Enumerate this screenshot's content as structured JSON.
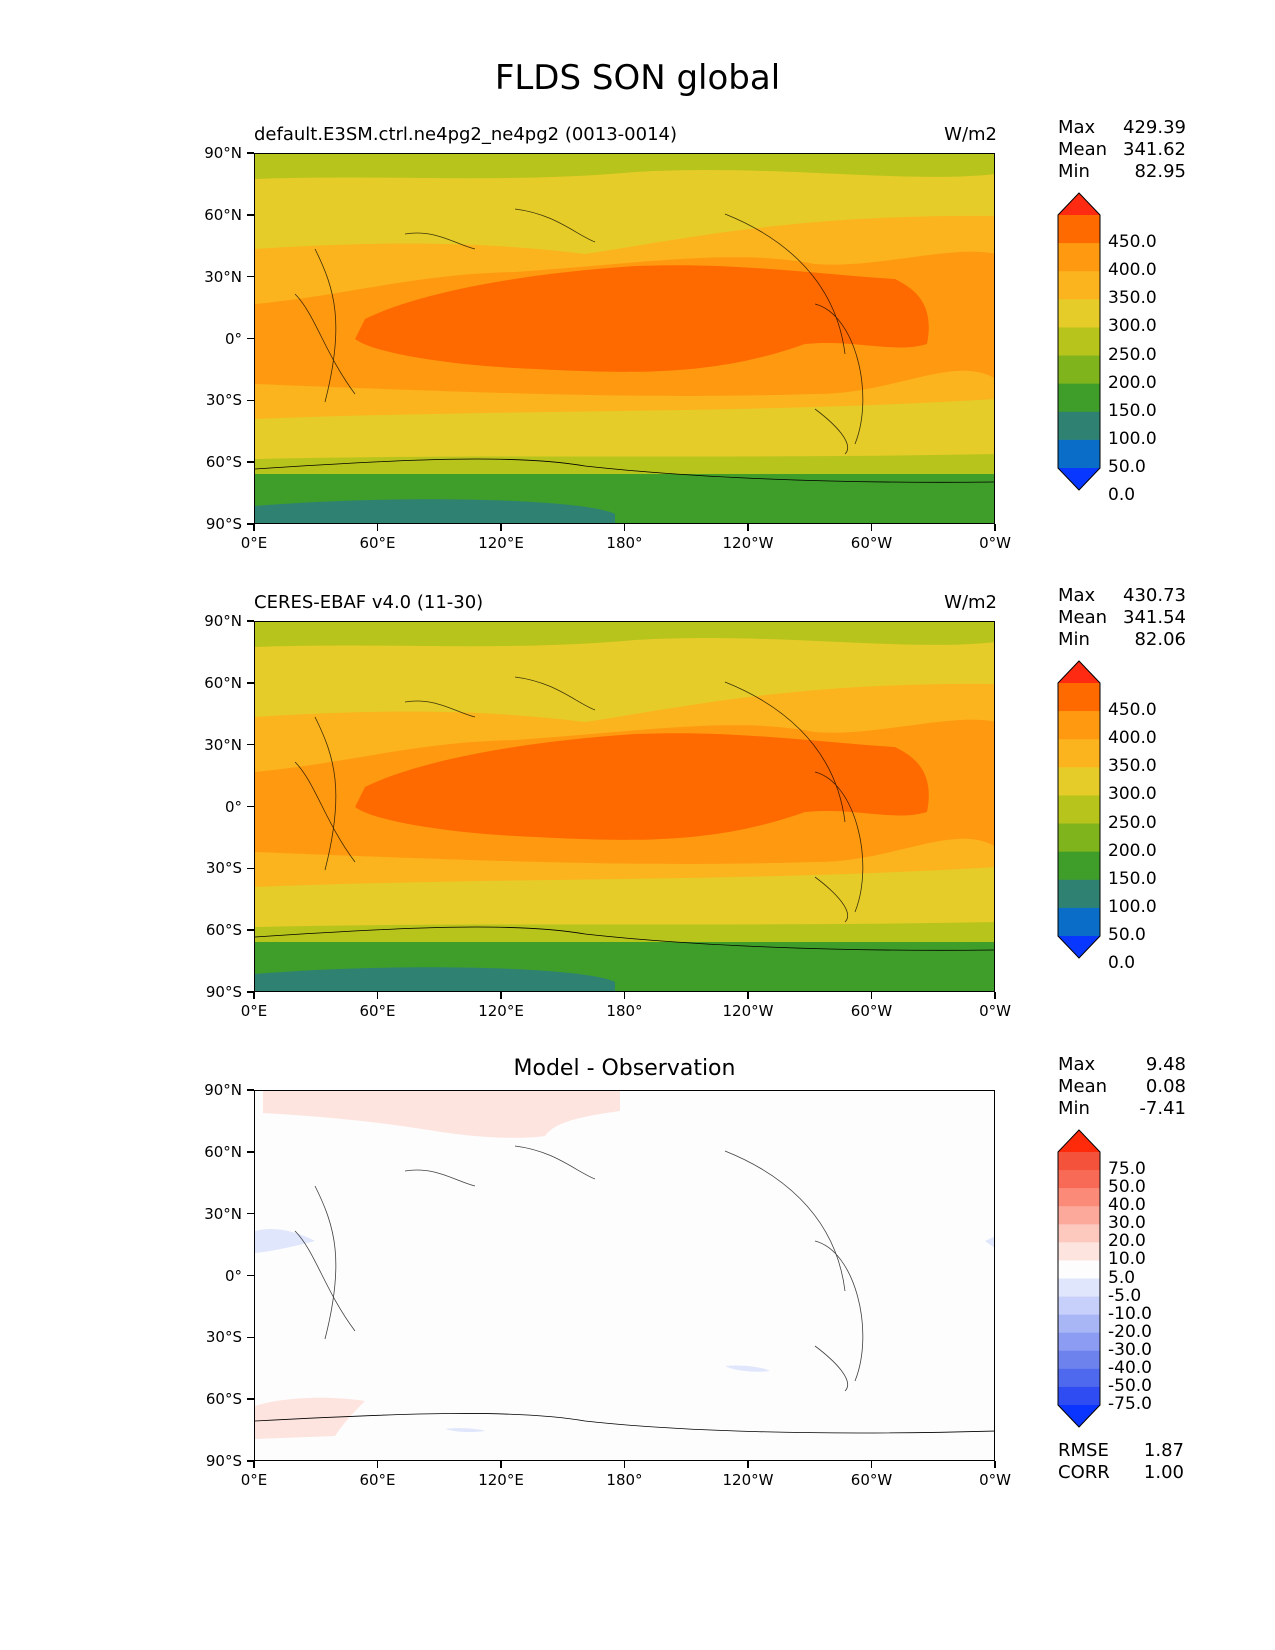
{
  "title": "FLDS SON global",
  "panels": [
    {
      "id": "model",
      "left_title": "default.E3SM.ctrl.ne4pg2_ne4pg2 (0013-0014)",
      "center_title": "",
      "units": "W/m2",
      "stats": [
        {
          "label": "Max",
          "value": "429.39"
        },
        {
          "label": "Mean",
          "value": "341.62"
        },
        {
          "label": "Min",
          "value": "82.95"
        }
      ],
      "colorbar": {
        "labels": [
          "450.0",
          "400.0",
          "350.0",
          "300.0",
          "250.0",
          "200.0",
          "150.0",
          "100.0",
          "50.0",
          "0.0"
        ],
        "colors": [
          "#ff2a12",
          "#ff6a00",
          "#ff9a10",
          "#fbb41e",
          "#e6cc28",
          "#b7c41c",
          "#7fb41c",
          "#3f9e2a",
          "#2f8272",
          "#0a6ec8",
          "#0838ff"
        ]
      }
    },
    {
      "id": "obs",
      "left_title": "CERES-EBAF v4.0 (11-30)",
      "center_title": "",
      "units": "W/m2",
      "stats": [
        {
          "label": "Max",
          "value": "430.73"
        },
        {
          "label": "Mean",
          "value": "341.54"
        },
        {
          "label": "Min",
          "value": "82.06"
        }
      ],
      "colorbar": {
        "labels": [
          "450.0",
          "400.0",
          "350.0",
          "300.0",
          "250.0",
          "200.0",
          "150.0",
          "100.0",
          "50.0",
          "0.0"
        ],
        "colors": [
          "#ff2a12",
          "#ff6a00",
          "#ff9a10",
          "#fbb41e",
          "#e6cc28",
          "#b7c41c",
          "#7fb41c",
          "#3f9e2a",
          "#2f8272",
          "#0a6ec8",
          "#0838ff"
        ]
      }
    },
    {
      "id": "diff",
      "left_title": "",
      "center_title": "Model - Observation",
      "units": "",
      "stats": [
        {
          "label": "Max",
          "value": "9.48"
        },
        {
          "label": "Mean",
          "value": "0.08"
        },
        {
          "label": "Min",
          "value": "-7.41"
        }
      ],
      "metrics": [
        {
          "label": "RMSE",
          "value": "1.87"
        },
        {
          "label": "CORR",
          "value": "1.00"
        }
      ],
      "colorbar": {
        "labels": [
          "75.0",
          "50.0",
          "40.0",
          "30.0",
          "20.0",
          "10.0",
          "5.0",
          "-5.0",
          "-10.0",
          "-20.0",
          "-30.0",
          "-40.0",
          "-50.0",
          "-75.0"
        ],
        "colors": [
          "#ff2a0a",
          "#f4523a",
          "#f86a55",
          "#fb8a78",
          "#fca89a",
          "#fdc8be",
          "#fde4df",
          "#fdfdfd",
          "#e0e6fb",
          "#c7d0fa",
          "#a9b6f6",
          "#8c9cf2",
          "#6e82ee",
          "#4e68ee",
          "#2f4cf2",
          "#0a34ff"
        ]
      }
    }
  ],
  "axes": {
    "yticks": [
      "90°N",
      "60°N",
      "30°N",
      "0°",
      "30°S",
      "60°S",
      "90°S"
    ],
    "xticks": [
      "0°E",
      "60°E",
      "120°E",
      "180°",
      "120°W",
      "60°W",
      "0°W"
    ]
  },
  "chart_data": [
    {
      "type": "heatmap",
      "title": "default.E3SM.ctrl.ne4pg2_ne4pg2 (0013-0014)",
      "units": "W/m2",
      "x_range": [
        0,
        360
      ],
      "y_range": [
        -90,
        90
      ],
      "levels": [
        0,
        50,
        100,
        150,
        200,
        250,
        300,
        350,
        400,
        450
      ],
      "max": 429.39,
      "mean": 341.62,
      "min": 82.95
    },
    {
      "type": "heatmap",
      "title": "CERES-EBAF v4.0 (11-30)",
      "units": "W/m2",
      "x_range": [
        0,
        360
      ],
      "y_range": [
        -90,
        90
      ],
      "levels": [
        0,
        50,
        100,
        150,
        200,
        250,
        300,
        350,
        400,
        450
      ],
      "max": 430.73,
      "mean": 341.54,
      "min": 82.06
    },
    {
      "type": "heatmap",
      "title": "Model - Observation",
      "x_range": [
        0,
        360
      ],
      "y_range": [
        -90,
        90
      ],
      "levels": [
        -75,
        -50,
        -40,
        -30,
        -20,
        -10,
        -5,
        5,
        10,
        20,
        30,
        40,
        50,
        75
      ],
      "max": 9.48,
      "mean": 0.08,
      "min": -7.41,
      "rmse": 1.87,
      "corr": 1.0
    }
  ]
}
